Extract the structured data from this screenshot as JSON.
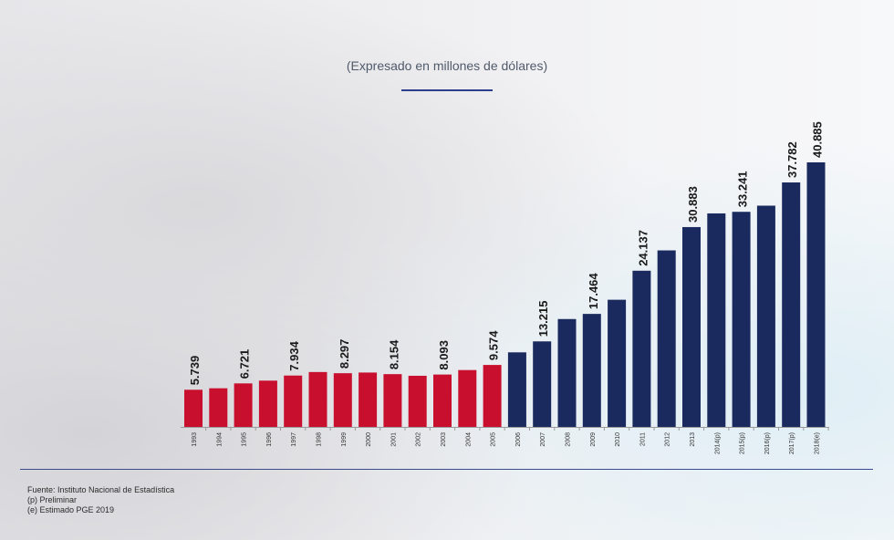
{
  "subtitle": "(Expresado en millones de dólares)",
  "colors": {
    "red": "#c8102e",
    "navy": "#1b2a5e",
    "rule": "#2b3f8c"
  },
  "chart_data": {
    "type": "bar",
    "title": "",
    "subtitle": "(Expresado en millones de dólares)",
    "xlabel": "",
    "ylabel": "",
    "ylim": [
      0,
      41000
    ],
    "grid": false,
    "categories": [
      "1993",
      "1994",
      "1995",
      "1996",
      "1997",
      "1998",
      "1999",
      "2000",
      "2001",
      "2002",
      "2003",
      "2004",
      "2005",
      "2006",
      "2007",
      "2008",
      "2009",
      "2010",
      "2011",
      "2012",
      "2013",
      "2014(p)",
      "2015(p)",
      "2016(p)",
      "2017(p)",
      "2018(e)"
    ],
    "values": [
      5739,
      5970,
      6721,
      7150,
      7934,
      8480,
      8297,
      8400,
      8154,
      7900,
      8093,
      8785,
      9574,
      11520,
      13215,
      16670,
      17464,
      19650,
      24137,
      27280,
      30883,
      32996,
      33241,
      34190,
      37782,
      40885
    ],
    "data_labels": [
      "5.739",
      "",
      "6.721",
      "",
      "7.934",
      "",
      "8.297",
      "",
      "8.154",
      "",
      "8.093",
      "",
      "9.574",
      "",
      "13.215",
      "",
      "17.464",
      "",
      "24.137",
      "",
      "30.883",
      "",
      "33.241",
      "",
      "37.782",
      "40.885"
    ],
    "bar_colors": [
      "#c8102e",
      "#c8102e",
      "#c8102e",
      "#c8102e",
      "#c8102e",
      "#c8102e",
      "#c8102e",
      "#c8102e",
      "#c8102e",
      "#c8102e",
      "#c8102e",
      "#c8102e",
      "#c8102e",
      "#1b2a5e",
      "#1b2a5e",
      "#1b2a5e",
      "#1b2a5e",
      "#1b2a5e",
      "#1b2a5e",
      "#1b2a5e",
      "#1b2a5e",
      "#1b2a5e",
      "#1b2a5e",
      "#1b2a5e",
      "#1b2a5e",
      "#1b2a5e"
    ]
  },
  "notes": {
    "source": "Fuente: Instituto Nacional de Estadística",
    "p": "(p) Preliminar",
    "e": "(e) Estimado PGE 2019"
  }
}
